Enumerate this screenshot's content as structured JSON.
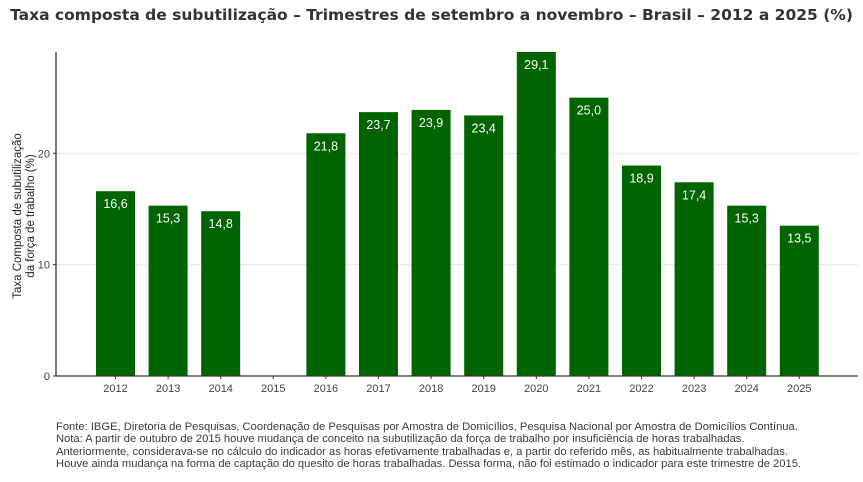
{
  "chart_data": {
    "type": "bar",
    "title": "Taxa composta de subutilização – Trimestres de setembro a novembro – Brasil – 2012 a 2025 (%)",
    "xlabel": "",
    "ylabel": [
      "Taxa Composta de subutilização",
      "da força de trabalho (%)"
    ],
    "categories": [
      "2012",
      "2013",
      "2014",
      "2015",
      "2016",
      "2017",
      "2018",
      "2019",
      "2020",
      "2021",
      "2022",
      "2023",
      "2024",
      "2025"
    ],
    "values": [
      16.6,
      15.3,
      14.8,
      null,
      21.8,
      23.7,
      23.9,
      23.4,
      29.1,
      25.0,
      18.9,
      17.4,
      15.3,
      13.5
    ],
    "value_labels": [
      "16,6",
      "15,3",
      "14,8",
      "",
      "21,8",
      "23,7",
      "23,9",
      "23,4",
      "29,1",
      "25,0",
      "18,9",
      "17,4",
      "15,3",
      "13,5"
    ],
    "yticks": [
      0,
      10,
      20
    ],
    "ytick_labels": [
      "0",
      "10",
      "20"
    ],
    "ylim": [
      0,
      29.1
    ],
    "grid": "horizontal",
    "bar_color": "#006400",
    "label_color": "#ffffff"
  },
  "notes": [
    "Fonte: IBGE, Diretoria de Pesquisas, Coordenação de Pesquisas por Amostra de Domicílios, Pesquisa Nacional por Amostra de Domicílios Contínua.",
    "Nota: A partir de outubro de 2015 houve mudança de conceito na subutilização da força de trabalho por insuficiência de horas trabalhadas.",
    "Anteriormente, considerava-se no cálculo do indicador as horas efetivamente trabalhadas e, a partir do referido mês, as habitualmente trabalhadas.",
    "Houve ainda mudança na forma de captação do quesito de horas trabalhadas. Dessa forma, não foi estimado o indicador para este trimestre de 2015."
  ]
}
